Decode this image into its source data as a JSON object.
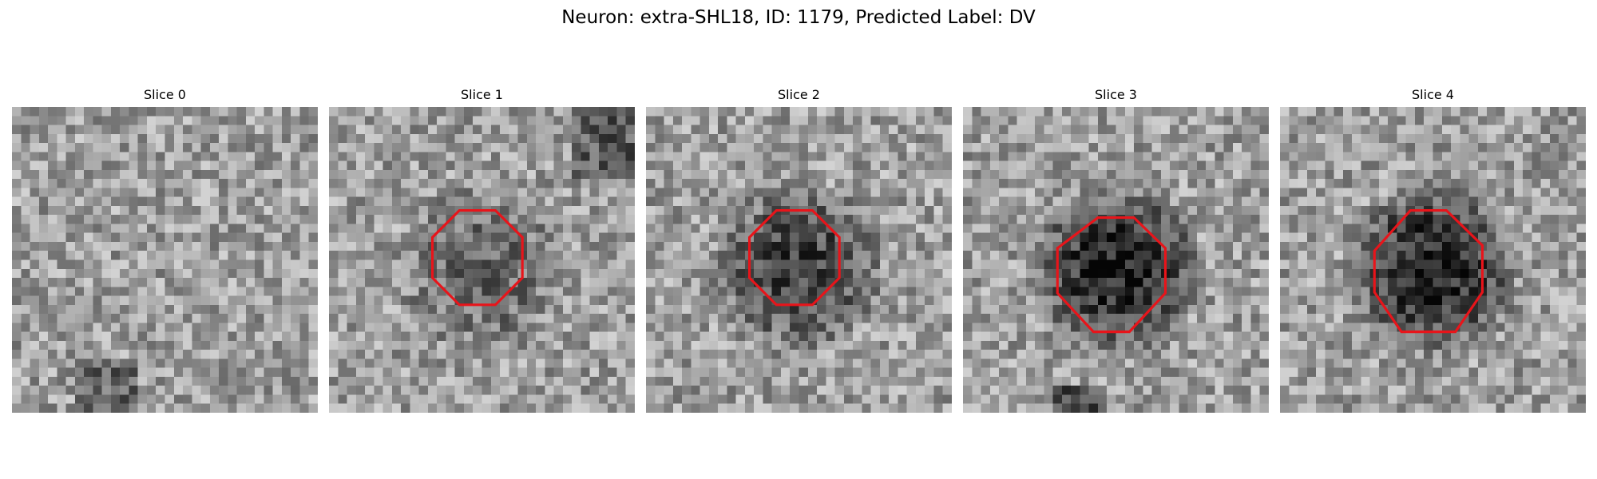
{
  "figure": {
    "title": "Neuron: extra-SHL18, ID: 1179, Predicted Label: DV"
  },
  "panels": [
    {
      "title": "Slice 0",
      "dark_region": "none",
      "roi": null
    },
    {
      "title": "Slice 1",
      "dark_region": "faint",
      "roi": [
        [
          14.5,
          11.5
        ],
        [
          18.5,
          11.5
        ],
        [
          21.5,
          14.5
        ],
        [
          21.5,
          19
        ],
        [
          18.5,
          22
        ],
        [
          14.5,
          22
        ],
        [
          11.5,
          19
        ],
        [
          11.5,
          14.5
        ]
      ]
    },
    {
      "title": "Slice 2",
      "dark_region": "medium",
      "roi": [
        [
          14.5,
          11.5
        ],
        [
          18.5,
          11.5
        ],
        [
          21.5,
          14.5
        ],
        [
          21.5,
          19
        ],
        [
          18.5,
          22
        ],
        [
          14.5,
          22
        ],
        [
          11.5,
          19
        ],
        [
          11.5,
          14.5
        ]
      ]
    },
    {
      "title": "Slice 3",
      "dark_region": "strong",
      "roi": [
        [
          15,
          12.3
        ],
        [
          19,
          12.3
        ],
        [
          22.5,
          15.7
        ],
        [
          22.5,
          20.7
        ],
        [
          18.5,
          25
        ],
        [
          14.5,
          25
        ],
        [
          10.5,
          20.7
        ],
        [
          10.5,
          15.7
        ]
      ]
    },
    {
      "title": "Slice 4",
      "dark_region": "strong",
      "roi": [
        [
          14.5,
          11.5
        ],
        [
          18.5,
          11.5
        ],
        [
          22.5,
          15.4
        ],
        [
          22.5,
          20.6
        ],
        [
          19.5,
          25
        ],
        [
          13.5,
          25
        ],
        [
          10.5,
          20.6
        ],
        [
          10.5,
          16
        ]
      ]
    }
  ],
  "colors": {
    "roi": "#e8141a"
  }
}
